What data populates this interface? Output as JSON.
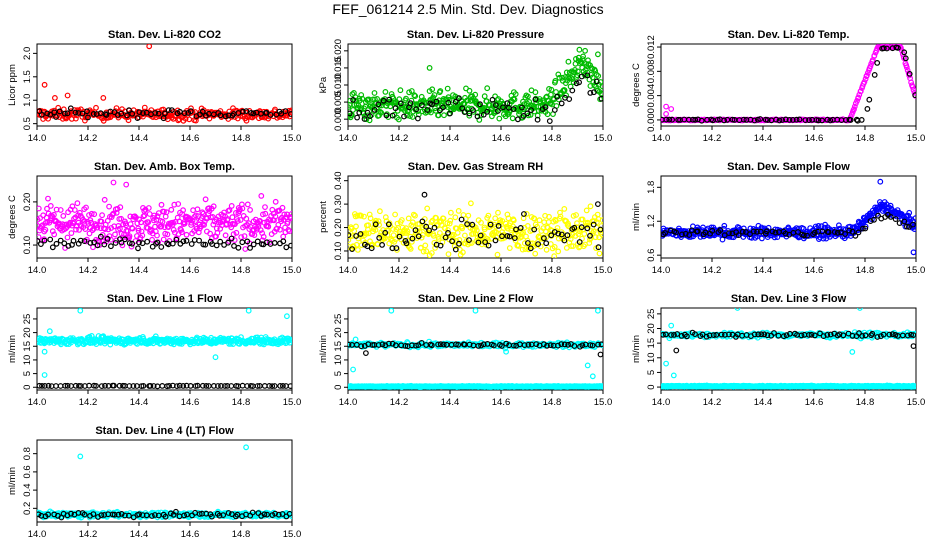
{
  "page": {
    "title": "FEF_061214  2.5 Min. Std. Dev. Diagnostics"
  },
  "chart_data": [
    {
      "type": "scatter",
      "title": "Stan. Dev. Li-820 CO2",
      "ylabel": "Licor ppm",
      "xlim": [
        14.0,
        15.0
      ],
      "ylim": [
        0.45,
        2.2
      ],
      "xticks": [
        "14.0",
        "14.2",
        "14.4",
        "14.6",
        "14.8",
        "15.0"
      ],
      "yticks": [
        "0.5",
        "1.0",
        "1.5",
        "2.0"
      ],
      "series": [
        {
          "color": "#ff0000",
          "n": 280,
          "base": 0.7,
          "spread": 0.12,
          "outliers": [
            [
              14.03,
              1.33
            ],
            [
              14.12,
              1.1
            ],
            [
              14.26,
              1.05
            ],
            [
              14.44,
              2.15
            ],
            [
              14.07,
              1.05
            ]
          ]
        },
        {
          "color": "#000000",
          "n": 70,
          "base": 0.72,
          "spread": 0.08,
          "outliers": []
        }
      ]
    },
    {
      "type": "scatter",
      "title": "Stan. Dev. Li-820 Pressure",
      "ylabel": "kPa",
      "xlim": [
        14.0,
        15.0
      ],
      "ylim": [
        -0.002,
        0.022
      ],
      "xticks": [
        "14.0",
        "14.2",
        "14.4",
        "14.6",
        "14.8",
        "15.0"
      ],
      "yticks": [
        "0.000",
        "0.005",
        "0.010",
        "0.015",
        "0.020"
      ],
      "series": [
        {
          "color": "#00bb00",
          "n": 420,
          "base": 0.004,
          "spread": 0.004,
          "ramp_start": 14.78,
          "ramp_peak": 14.92,
          "ramp_value": 0.013,
          "outliers": [
            [
              14.32,
              0.015
            ],
            [
              14.98,
              0.019
            ],
            [
              14.93,
              0.02
            ]
          ]
        },
        {
          "color": "#000000",
          "n": 70,
          "base": 0.003,
          "spread": 0.003,
          "ramp_start": 14.8,
          "ramp_peak": 14.92,
          "ramp_value": 0.009,
          "outliers": []
        }
      ]
    },
    {
      "type": "scatter",
      "title": "Stan. Dev. Li-820 Temp.",
      "ylabel": "degrees C",
      "xlim": [
        14.0,
        15.0
      ],
      "ylim": [
        -0.001,
        0.0125
      ],
      "xticks": [
        "14.0",
        "14.2",
        "14.4",
        "14.6",
        "14.8",
        "15.0"
      ],
      "yticks": [
        "0.000",
        "0.004",
        "0.008",
        "0.012"
      ],
      "series": [
        {
          "color": "#ff00ff",
          "n": 300,
          "base": 0.0,
          "spread": 0.0001,
          "ramp_start": 14.74,
          "ramp_peak": 14.85,
          "ramp_value": 0.012,
          "plateau_end": 14.94,
          "outliers": [
            [
              14.02,
              0.0022
            ],
            [
              14.04,
              0.0018
            ],
            [
              14.02,
              0.001
            ]
          ]
        },
        {
          "color": "#000000",
          "n": 70,
          "base": 0.0,
          "spread": 0.0001,
          "ramp_start": 14.8,
          "ramp_peak": 14.86,
          "ramp_value": 0.0118,
          "plateau_end": 14.95,
          "outliers": []
        }
      ]
    },
    {
      "type": "scatter",
      "title": "Stan. Dev. Amb. Box Temp.",
      "ylabel": "degrees C",
      "xlim": [
        14.0,
        15.0
      ],
      "ylim": [
        0.07,
        0.26
      ],
      "xticks": [
        "14.0",
        "14.2",
        "14.4",
        "14.6",
        "14.8",
        "15.0"
      ],
      "yticks": [
        "0.10",
        "0.20"
      ],
      "series": [
        {
          "color": "#ff00ff",
          "n": 420,
          "base": 0.15,
          "spread": 0.045,
          "outliers": [
            [
              14.3,
              0.245
            ],
            [
              14.35,
              0.24
            ]
          ]
        },
        {
          "color": "#000000",
          "n": 70,
          "base": 0.105,
          "spread": 0.01,
          "outliers": []
        }
      ]
    },
    {
      "type": "scatter",
      "title": "Stan. Dev. Gas Stream RH",
      "ylabel": "percent",
      "xlim": [
        14.0,
        15.0
      ],
      "ylim": [
        0.07,
        0.42
      ],
      "xticks": [
        "14.0",
        "14.2",
        "14.4",
        "14.6",
        "14.8",
        "15.0"
      ],
      "yticks": [
        "0.10",
        "0.20",
        "0.30",
        "0.40"
      ],
      "series": [
        {
          "color": "#ffff00",
          "n": 420,
          "base": 0.18,
          "spread": 0.09,
          "outliers": []
        },
        {
          "color": "#000000",
          "n": 70,
          "base": 0.17,
          "spread": 0.07,
          "outliers": [
            [
              14.3,
              0.34
            ],
            [
              14.98,
              0.3
            ]
          ]
        }
      ]
    },
    {
      "type": "scatter",
      "title": "Stan. Dev. Sample Flow",
      "ylabel": "ml/min",
      "xlim": [
        14.0,
        15.0
      ],
      "ylim": [
        0.55,
        2.0
      ],
      "xticks": [
        "14.0",
        "14.2",
        "14.4",
        "14.6",
        "14.8",
        "15.0"
      ],
      "yticks": [
        "0.6",
        "1.2",
        "1.8"
      ],
      "series": [
        {
          "color": "#0000ff",
          "n": 420,
          "base": 1.0,
          "spread": 0.1,
          "ramp_start": 14.75,
          "ramp_peak": 14.86,
          "ramp_value": 0.45,
          "plateau_end": 14.88,
          "outliers": [
            [
              14.86,
              1.9
            ],
            [
              14.99,
              0.65
            ]
          ]
        },
        {
          "color": "#000000",
          "n": 70,
          "base": 1.0,
          "spread": 0.05,
          "ramp_start": 14.78,
          "ramp_peak": 14.86,
          "ramp_value": 0.3,
          "plateau_end": 14.88,
          "outliers": []
        }
      ]
    },
    {
      "type": "scatter",
      "title": "Stan. Dev. Line 1 Flow",
      "ylabel": "ml/min",
      "xlim": [
        14.0,
        15.0
      ],
      "ylim": [
        -1,
        29
      ],
      "xticks": [
        "14.0",
        "14.2",
        "14.4",
        "14.6",
        "14.8",
        "15.0"
      ],
      "yticks": [
        "0",
        "5",
        "10",
        "15",
        "20",
        "25"
      ],
      "series": [
        {
          "color": "#00ffff",
          "n": 420,
          "base": 17.0,
          "spread": 1.3,
          "outliers": [
            [
              14.05,
              20.5
            ],
            [
              14.03,
              4.5
            ],
            [
              14.17,
              28
            ],
            [
              14.83,
              28
            ],
            [
              14.98,
              26
            ],
            [
              14.7,
              11
            ],
            [
              14.03,
              13
            ]
          ]
        },
        {
          "color": "#000000",
          "n": 70,
          "base": 0.5,
          "spread": 0.1,
          "outliers": []
        }
      ]
    },
    {
      "type": "scatter",
      "title": "Stan. Dev. Line 2 Flow",
      "ylabel": "ml/min",
      "xlim": [
        14.0,
        15.0
      ],
      "ylim": [
        -1,
        29
      ],
      "xticks": [
        "14.0",
        "14.2",
        "14.4",
        "14.6",
        "14.8",
        "15.0"
      ],
      "yticks": [
        "0",
        "5",
        "10",
        "15",
        "20",
        "25"
      ],
      "series": [
        {
          "color": "#00ffff",
          "n": 420,
          "base": 0.3,
          "spread": 0.2,
          "outliers": []
        },
        {
          "color": "#00ffff",
          "n": 260,
          "base": 15.5,
          "spread": 0.8,
          "outliers": [
            [
              14.02,
              6.5
            ],
            [
              14.03,
              17.5
            ],
            [
              14.17,
              28
            ],
            [
              14.5,
              28
            ],
            [
              14.98,
              28
            ],
            [
              14.94,
              8
            ],
            [
              14.62,
              13
            ],
            [
              14.96,
              4
            ]
          ]
        },
        {
          "color": "#000000",
          "n": 70,
          "base": 15.5,
          "spread": 0.5,
          "outliers": [
            [
              14.07,
              12.5
            ],
            [
              14.99,
              12
            ]
          ]
        }
      ]
    },
    {
      "type": "scatter",
      "title": "Stan. Dev. Line 3 Flow",
      "ylabel": "ml/min",
      "xlim": [
        14.0,
        15.0
      ],
      "ylim": [
        -1,
        27
      ],
      "xticks": [
        "14.0",
        "14.2",
        "14.4",
        "14.6",
        "14.8",
        "15.0"
      ],
      "yticks": [
        "0",
        "5",
        "10",
        "15",
        "20",
        "25"
      ],
      "series": [
        {
          "color": "#00ffff",
          "n": 420,
          "base": 0.3,
          "spread": 0.2,
          "outliers": []
        },
        {
          "color": "#00ffff",
          "n": 260,
          "base": 17.8,
          "spread": 0.8,
          "outliers": [
            [
              14.02,
              8
            ],
            [
              14.04,
              21
            ],
            [
              14.3,
              27
            ],
            [
              14.78,
              27
            ],
            [
              14.75,
              12
            ],
            [
              14.05,
              4
            ]
          ]
        },
        {
          "color": "#000000",
          "n": 70,
          "base": 17.8,
          "spread": 0.6,
          "outliers": [
            [
              14.06,
              12.5
            ],
            [
              14.99,
              14
            ]
          ]
        }
      ]
    },
    {
      "type": "scatter",
      "title": "Stan. Dev. Line 4 (LT) Flow",
      "ylabel": "ml/min",
      "xlim": [
        14.0,
        15.0
      ],
      "ylim": [
        0.05,
        0.95
      ],
      "xticks": [
        "14.0",
        "14.2",
        "14.4",
        "14.6",
        "14.8",
        "15.0"
      ],
      "yticks": [
        "0.2",
        "0.4",
        "0.6",
        "0.8"
      ],
      "series": [
        {
          "color": "#00ffff",
          "n": 420,
          "base": 0.13,
          "spread": 0.025,
          "outliers": [
            [
              14.17,
              0.77
            ],
            [
              14.82,
              0.87
            ]
          ]
        },
        {
          "color": "#000000",
          "n": 70,
          "base": 0.13,
          "spread": 0.025,
          "outliers": []
        }
      ]
    }
  ]
}
